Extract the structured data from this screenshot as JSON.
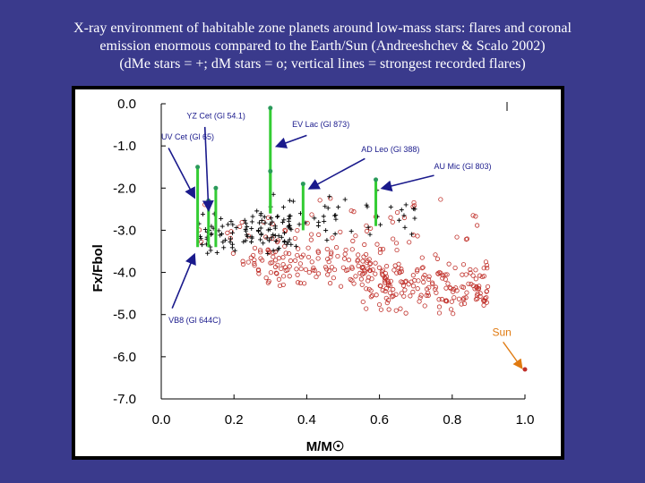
{
  "slide": {
    "title_lines": [
      "X-ray environment of habitable zone planets around low-mass stars: flares and coronal",
      "emission enormous compared to the Earth/Sun (Andreeshchev & Scalo 2002)",
      "(dMe stars = +; dM stars = o; vertical lines = strongest recorded flares)"
    ]
  },
  "chart_data": {
    "type": "scatter",
    "xlabel": "M/M☉",
    "ylabel": "Fx/Fbol",
    "xlim": [
      0.0,
      1.0
    ],
    "ylim": [
      -7.0,
      0.0
    ],
    "x_ticks": [
      "0.0",
      "0.2",
      "0.4",
      "0.6",
      "0.8",
      "1.0"
    ],
    "y_ticks": [
      "0.0",
      "-1.0",
      "-2.0",
      "-3.0",
      "-4.0",
      "-5.0",
      "-6.0",
      "-7.0"
    ],
    "colors": {
      "dMe": "#000000",
      "dM": "#c0302a",
      "flare": "#33cc33",
      "arrow": "#1a1a8c",
      "sun": "#e07a10"
    },
    "series": [
      {
        "name": "dMe stars",
        "marker": "+",
        "note": "cluster of points, mostly x 0.1-0.45, y -2 to -4.5"
      },
      {
        "name": "dM stars",
        "marker": "o",
        "note": "broad cloud, x 0.1-0.9, y -2.5 to -5.7"
      }
    ],
    "flares": [
      {
        "star": "UV Cet (Gl 65)",
        "x": 0.1,
        "y_top": -1.5,
        "y_bottom": -3.4
      },
      {
        "star": "YZ Cet (Gl 54.1)",
        "x": 0.13,
        "y_top": -2.3,
        "y_bottom": -3.4
      },
      {
        "star": "",
        "x": 0.15,
        "y_top": -2.0,
        "y_bottom": -3.4
      },
      {
        "star": "EV Lac (Gl 873)",
        "x": 0.3,
        "y_top": -0.1,
        "y_bottom": -2.6
      },
      {
        "star": "",
        "x": 0.3,
        "y_top": -1.6,
        "y_bottom": -2.6
      },
      {
        "star": "AD Leo (Gl 388)",
        "x": 0.39,
        "y_top": -1.9,
        "y_bottom": -3.0
      },
      {
        "star": "AU Mic (Gl 803)",
        "x": 0.59,
        "y_top": -1.8,
        "y_bottom": -2.9
      }
    ],
    "annotations": [
      {
        "text": "YZ Cet (Gl 54.1)",
        "x": 0.07,
        "y": -0.35
      },
      {
        "text": "UV Cet (Gl 65)",
        "x": 0.0,
        "y": -0.85
      },
      {
        "text": "EV Lac (Gl 873)",
        "x": 0.36,
        "y": -0.55
      },
      {
        "text": "AD Leo (Gl 388)",
        "x": 0.55,
        "y": -1.15
      },
      {
        "text": "AU Mic (Gl 803)",
        "x": 0.75,
        "y": -1.55
      },
      {
        "text": "VB8 (Gl 644C)",
        "x": 0.02,
        "y": -5.2
      }
    ],
    "sun": {
      "label": "Sun",
      "x": 1.0,
      "y": -6.3
    }
  }
}
